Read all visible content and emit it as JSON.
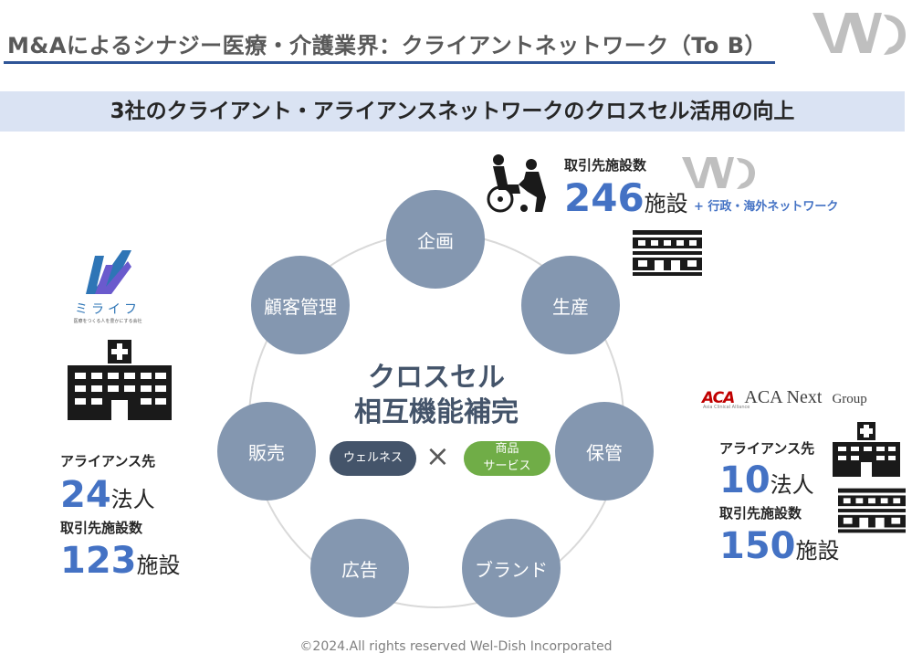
{
  "header": {
    "title": "M&Aによるシナジー医療・介護業界：クライアントネットワーク（To B）"
  },
  "banner": {
    "text": "3社のクライアント・アライアンスネットワークのクロスセル活用の向上"
  },
  "top_right": {
    "label": "取引先施設数",
    "number": "246",
    "unit": "施設",
    "extra": "+ 行政・海外ネットワーク"
  },
  "left": {
    "brand_name": "ミライフ",
    "brand_tagline": "医療をつくる人を豊かにする会社",
    "alliance_label": "アライアンス先",
    "alliance_number": "24",
    "alliance_unit": "法人",
    "facility_label": "取引先施設数",
    "facility_number": "123",
    "facility_unit": "施設"
  },
  "right": {
    "brand_mark": "ACA",
    "brand_sub": "Asia Clinical Alliance",
    "brand_name": "ACA Next",
    "brand_group": "Group",
    "alliance_label": "アライアンス先",
    "alliance_number": "10",
    "alliance_unit": "法人",
    "facility_label": "取引先施設数",
    "facility_number": "150",
    "facility_unit": "施設"
  },
  "cycle": {
    "nodes": [
      "企画",
      "生産",
      "保管",
      "ブランド",
      "広告",
      "販売",
      "顧客管理"
    ],
    "center_line1": "クロスセル",
    "center_line2": "相互機能補完",
    "pill_left": "ウェルネス",
    "cross": "×",
    "pill_right_line1": "商品",
    "pill_right_line2": "サービス"
  },
  "footer": {
    "text": "©2024.All rights reserved Wel-Dish Incorporated"
  },
  "colors": {
    "title_rule": "#2f5597",
    "banner_bg": "#dae3f3",
    "number_blue": "#4472c4",
    "node_fill": "#8497b0",
    "pill_dark": "#44546a",
    "pill_green": "#70ad47",
    "aca_red": "#c00000"
  }
}
